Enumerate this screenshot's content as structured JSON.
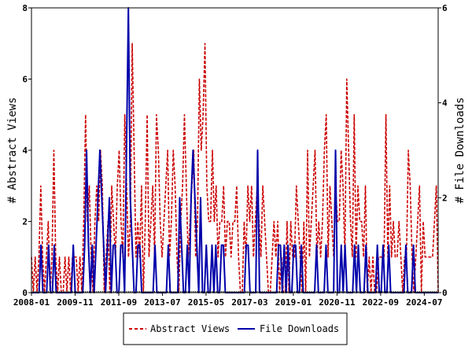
{
  "chart_data": {
    "type": "line",
    "title": "",
    "xlabel": "",
    "ylabel": "# Abstract Views",
    "y2label": "# File Downloads",
    "ylim": [
      0,
      8
    ],
    "y2lim": [
      0,
      6
    ],
    "xlim": [
      0,
      205
    ],
    "yticks": [
      0,
      2,
      4,
      6,
      8
    ],
    "y2ticks": [
      0,
      2,
      4,
      6
    ],
    "xticks": [
      {
        "pos": 0,
        "label": "2008-01"
      },
      {
        "pos": 22,
        "label": "2009-11"
      },
      {
        "pos": 44,
        "label": "2011-09"
      },
      {
        "pos": 66,
        "label": "2013-07"
      },
      {
        "pos": 88,
        "label": "2015-05"
      },
      {
        "pos": 110,
        "label": "2017-03"
      },
      {
        "pos": 132,
        "label": "2019-01"
      },
      {
        "pos": 154,
        "label": "2020-11"
      },
      {
        "pos": 176,
        "label": "2022-09"
      },
      {
        "pos": 198,
        "label": "2024-07"
      }
    ],
    "legend_position": "bottom",
    "series": [
      {
        "name": "Abstract Views",
        "axis": "left",
        "color": "#cc0000",
        "style": "dashed",
        "values": [
          1,
          0,
          1,
          0,
          1,
          3,
          1,
          0,
          1,
          2,
          0,
          1,
          4,
          1,
          0,
          1,
          0,
          0,
          1,
          0,
          1,
          0,
          1,
          1,
          1,
          0,
          1,
          0,
          2,
          5,
          2,
          3,
          1,
          0,
          2,
          3,
          2,
          4,
          3,
          0,
          1,
          2,
          0,
          3,
          2,
          1,
          3,
          4,
          2,
          1,
          5,
          3,
          1,
          2,
          7,
          4,
          1,
          2,
          1,
          3,
          0,
          2,
          5,
          1,
          2,
          3,
          1,
          5,
          4,
          2,
          1,
          2,
          3,
          4,
          1,
          2,
          4,
          3,
          1,
          0,
          2,
          3,
          5,
          3,
          1,
          2,
          3,
          4,
          1,
          2,
          6,
          4,
          5,
          7,
          3,
          2,
          2,
          4,
          2,
          3,
          1,
          2,
          2,
          3,
          1,
          2,
          2,
          1,
          2,
          2,
          3,
          1,
          0,
          0,
          2,
          1,
          3,
          2,
          3,
          1,
          2,
          3,
          2,
          1,
          3,
          2,
          1,
          0,
          0,
          1,
          2,
          1,
          2,
          0,
          1,
          0,
          0,
          2,
          0,
          2,
          1,
          1,
          3,
          2,
          1,
          0,
          2,
          0,
          4,
          1,
          2,
          3,
          4,
          1,
          2,
          1,
          2,
          4,
          5,
          1,
          3,
          2,
          1,
          3,
          2,
          2,
          4,
          3,
          1,
          6,
          4,
          2,
          1,
          5,
          1,
          3,
          2,
          2,
          1,
          3,
          0,
          1,
          0,
          1,
          0,
          0,
          1,
          1,
          1,
          1,
          5,
          1,
          3,
          1,
          2,
          1,
          1,
          2,
          1,
          0,
          1,
          1,
          4,
          3,
          1,
          0,
          1,
          2,
          3,
          0,
          2,
          1,
          1,
          1,
          1,
          1,
          2,
          3,
          0
        ],
        "labeled_note": ""
      },
      {
        "name": "File Downloads",
        "axis": "right",
        "color": "#0000aa",
        "style": "solid",
        "values": [
          0,
          0,
          0,
          0,
          0,
          1,
          0,
          0,
          0,
          1,
          0,
          0,
          1,
          0,
          0,
          0,
          0,
          0,
          0,
          0,
          0,
          0,
          1,
          0,
          0,
          0,
          0,
          0,
          1,
          3,
          1,
          0,
          1,
          0,
          1,
          2,
          3,
          2,
          1,
          0,
          1,
          2,
          0,
          1,
          1,
          0,
          0,
          1,
          1,
          0,
          3,
          6,
          2,
          1,
          0,
          0,
          1,
          1,
          0,
          0,
          0,
          0,
          0,
          0,
          0,
          1,
          0,
          0,
          0,
          0,
          0,
          0,
          1,
          0,
          0,
          0,
          0,
          0,
          2,
          1,
          0,
          0,
          1,
          0,
          2,
          3,
          2,
          1,
          0,
          2,
          0,
          0,
          1,
          0,
          0,
          1,
          0,
          1,
          0,
          0,
          1,
          1,
          0,
          0,
          0,
          0,
          0,
          0,
          0,
          0,
          0,
          0,
          0,
          1,
          1,
          0,
          0,
          0,
          0,
          3,
          0,
          0,
          0,
          0,
          0,
          0,
          0,
          0,
          0,
          0,
          1,
          1,
          0,
          1,
          0,
          1,
          0,
          0,
          1,
          1,
          0,
          0,
          1,
          0,
          0,
          0,
          0,
          0,
          0,
          0,
          1,
          0,
          0,
          0,
          0,
          1,
          0,
          0,
          0,
          0,
          3,
          0,
          0,
          1,
          0,
          1,
          0,
          0,
          0,
          0,
          1,
          0,
          1,
          0,
          0,
          0,
          1,
          0,
          0,
          0,
          0,
          0,
          1,
          0,
          0,
          1,
          0,
          0,
          1,
          0,
          0,
          0,
          0,
          0,
          0,
          0,
          0,
          1,
          0,
          0,
          0,
          1,
          0,
          0,
          0,
          0,
          0,
          0,
          0,
          0,
          0,
          0,
          0,
          0,
          0
        ]
      }
    ]
  }
}
